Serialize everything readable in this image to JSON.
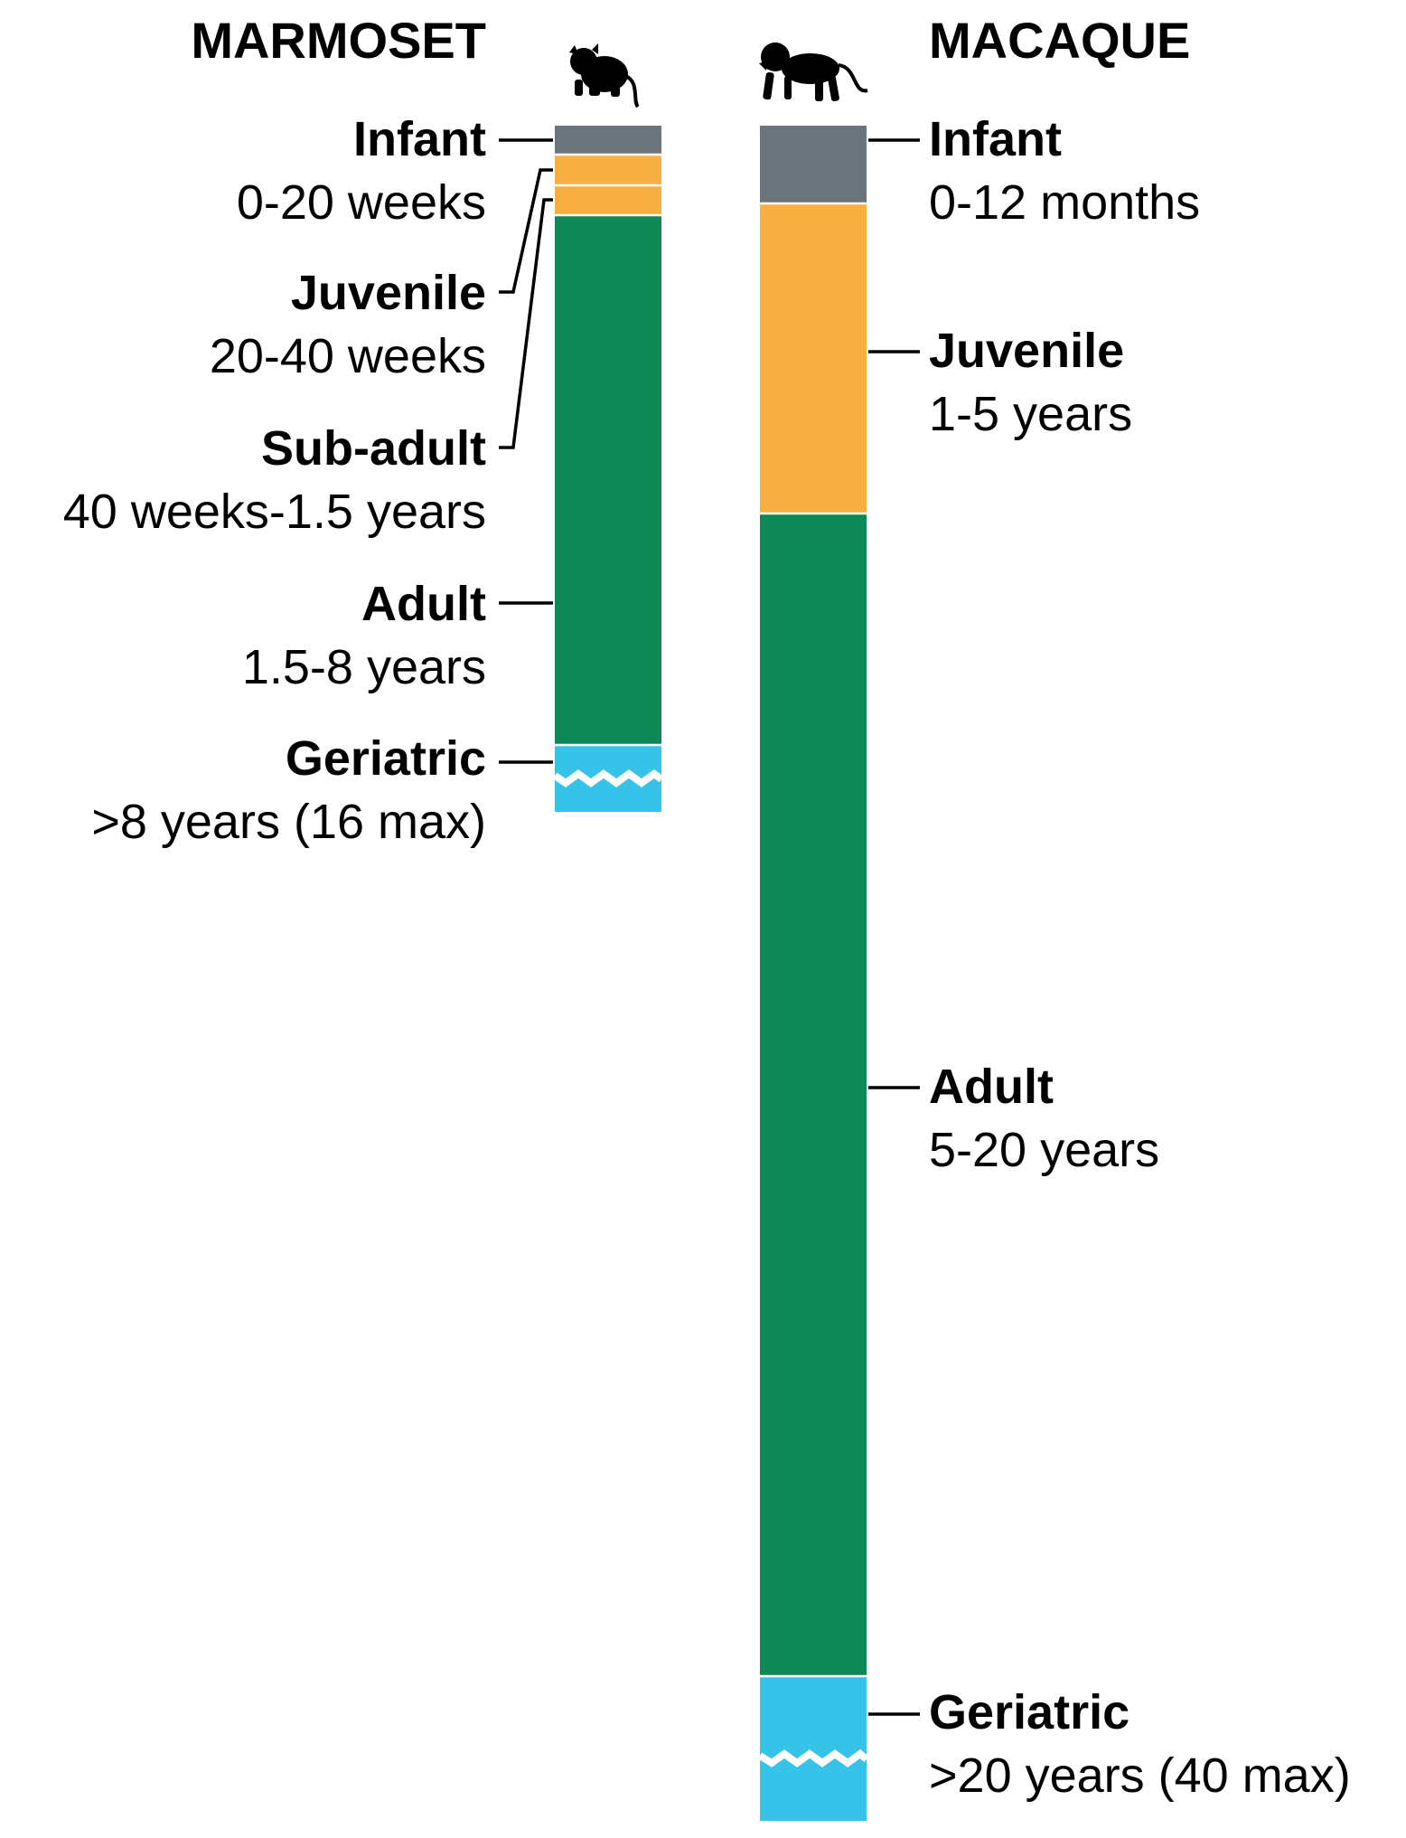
{
  "colors": {
    "infant": "#6b737b",
    "juvenile": "#f9ae42",
    "subadult": "#f9ae42",
    "adult": "#0e8857",
    "geriatric": "#35c3ea",
    "break_line": "#ffffff"
  },
  "marmoset": {
    "title": "MARMOSET",
    "icon": "marmoset-silhouette-icon",
    "stages": [
      {
        "key": "infant",
        "name": "Infant",
        "range": "0-20 weeks",
        "start_years": 0,
        "end_years": 0.385
      },
      {
        "key": "juvenile",
        "name": "Juvenile",
        "range": "20-40 weeks",
        "start_years": 0.385,
        "end_years": 0.77
      },
      {
        "key": "subadult",
        "name": "Sub-adult",
        "range": "40 weeks-1.5 years",
        "start_years": 0.77,
        "end_years": 1.5
      },
      {
        "key": "adult",
        "name": "Adult",
        "range": "1.5-8 years",
        "start_years": 1.5,
        "end_years": 8
      },
      {
        "key": "geriatric",
        "name": "Geriatric",
        "range": ">8 years (16 max)",
        "start_years": 8,
        "end_years": 16
      }
    ]
  },
  "macaque": {
    "title": "MACAQUE",
    "icon": "macaque-silhouette-icon",
    "stages": [
      {
        "key": "infant",
        "name": "Infant",
        "range": "0-12 months",
        "start_years": 0,
        "end_years": 1
      },
      {
        "key": "juvenile",
        "name": "Juvenile",
        "range": "1-5 years",
        "start_years": 1,
        "end_years": 5
      },
      {
        "key": "adult",
        "name": "Adult",
        "range": "5-20 years",
        "start_years": 5,
        "end_years": 20
      },
      {
        "key": "geriatric",
        "name": "Geriatric",
        "range": ">20 years (40 max)",
        "start_years": 20,
        "end_years": 40
      }
    ]
  }
}
